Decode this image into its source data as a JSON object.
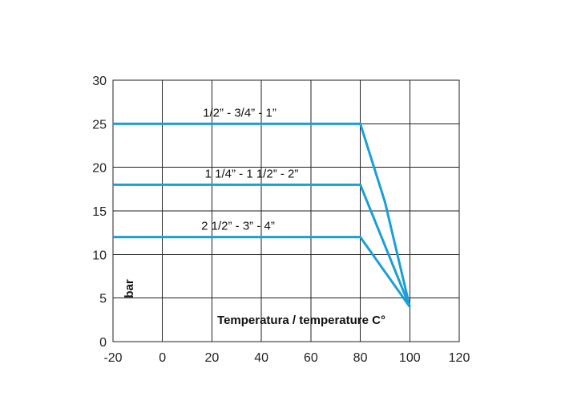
{
  "chart_data": {
    "type": "line",
    "xlabel": "Temperatura / temperature C°",
    "ylabel": "bar",
    "xlim": [
      -20,
      120
    ],
    "ylim": [
      0,
      30
    ],
    "xticks": [
      -20,
      0,
      20,
      40,
      60,
      80,
      100,
      120
    ],
    "yticks": [
      0,
      5,
      10,
      15,
      20,
      25,
      30
    ],
    "grid": true,
    "line_color": "#1a9fd6",
    "series": [
      {
        "name": "1/2” - 3/4” - 1”",
        "x": [
          -20,
          80,
          90,
          100
        ],
        "y": [
          25,
          25,
          16,
          4
        ]
      },
      {
        "name": "1 1/4” - 1 1/2” - 2”",
        "x": [
          -20,
          80,
          100
        ],
        "y": [
          18,
          18,
          4
        ]
      },
      {
        "name": "2 1/2” - 3” - 4”",
        "x": [
          -20,
          80,
          100
        ],
        "y": [
          12,
          12,
          4
        ]
      }
    ]
  }
}
